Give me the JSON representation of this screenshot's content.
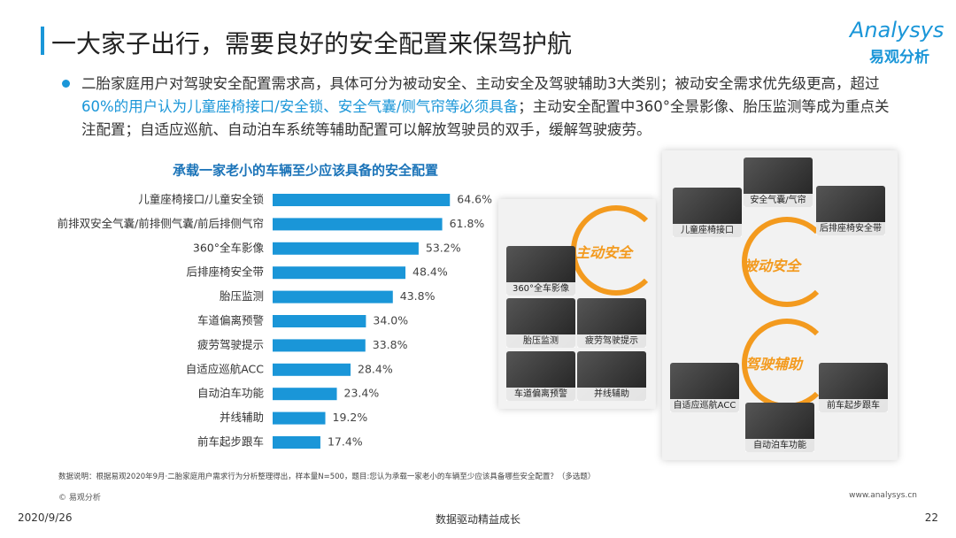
{
  "header": {
    "title": "一大家子出行，需要良好的安全配置来保驾护航",
    "logo_en": "Analysys",
    "logo_cn": "易观分析"
  },
  "summary": {
    "part1": "二胎家庭用户对驾驶安全配置需求高，具体可分为被动安全、主动安全及驾驶辅助3大类别；被动安全需求优先级更高，超过",
    "highlight": "60%的用户认为儿童座椅接口/安全锁、安全气囊/侧气帘等必须具备",
    "part2": "；主动安全配置中360°全景影像、胎压监测等成为重点关注配置；自适应巡航、自动泊车系统等辅助配置可以解放驾驶员的双手，缓解驾驶疲劳。"
  },
  "chart_data": {
    "type": "bar",
    "orientation": "horizontal",
    "title": "承载一家老小的车辆至少应该具备的安全配置",
    "categories": [
      "儿童座椅接口/儿童安全锁",
      "前排双安全气囊/前排侧气囊/前后排侧气帘",
      "360°全车影像",
      "后排座椅安全带",
      "胎压监测",
      "车道偏离预警",
      "疲劳驾驶提示",
      "自适应巡航ACC",
      "自动泊车功能",
      "并线辅助",
      "前车起步跟车"
    ],
    "values": [
      64.6,
      61.8,
      53.2,
      48.4,
      43.8,
      34.0,
      33.8,
      28.4,
      23.4,
      19.2,
      17.4
    ],
    "value_labels": [
      "64.6%",
      "61.8%",
      "53.2%",
      "48.4%",
      "43.8%",
      "34.0%",
      "33.8%",
      "28.4%",
      "23.4%",
      "19.2%",
      "17.4%"
    ],
    "color": "#1a96d8"
  },
  "illustration": {
    "groups": [
      {
        "label": "主动安全",
        "items": [
          "360°全车影像",
          "胎压监测",
          "疲劳驾驶提示",
          "车道偏离预警",
          "并线辅助"
        ]
      },
      {
        "label": "被动安全",
        "items": [
          "儿童座椅接口",
          "安全气囊/气帘",
          "后排座椅安全带"
        ]
      },
      {
        "label": "驾驶辅助",
        "items": [
          "自适应巡航ACC",
          "前车起步跟车",
          "自动泊车功能"
        ]
      }
    ]
  },
  "footer": {
    "note": "数据说明：根据易观2020年9月·二胎家庭用户需求行为分析整理得出，样本量N=500，题目:您认为承载一家老小的车辆至少应该具备哪些安全配置？（多选题）",
    "copyright": "© 易观分析",
    "url": "www.analysys.cn",
    "date": "2020/9/26",
    "slogan": "数据驱动精益成长",
    "page": "22"
  }
}
